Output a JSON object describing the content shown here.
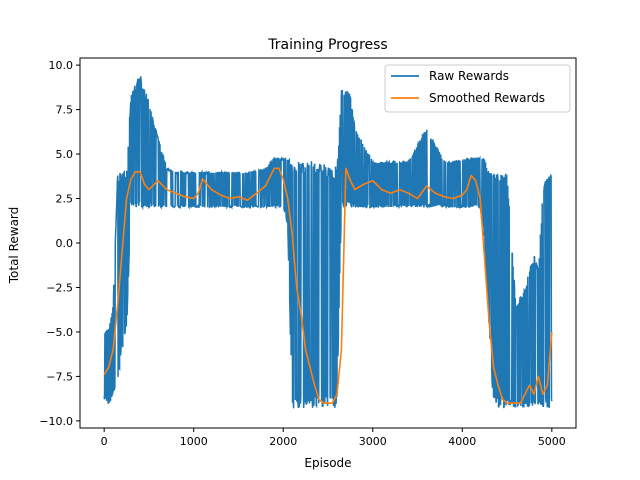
{
  "chart_data": {
    "type": "line",
    "title": "Training Progress",
    "xlabel": "Episode",
    "ylabel": "Total Reward",
    "xlim": [
      -270,
      5270
    ],
    "ylim": [
      -10.4,
      10.4
    ],
    "xticks": [
      0,
      1000,
      2000,
      3000,
      4000,
      5000
    ],
    "yticks": [
      -10.0,
      -7.5,
      -5.0,
      -2.5,
      0.0,
      2.5,
      5.0,
      7.5,
      10.0
    ],
    "xtick_labels": [
      "0",
      "1000",
      "2000",
      "3000",
      "4000",
      "5000"
    ],
    "ytick_labels": [
      "−10.0",
      "−7.5",
      "−5.0",
      "−2.5",
      "0.0",
      "2.5",
      "5.0",
      "7.5",
      "10.0"
    ],
    "grid": false,
    "legend_position": "upper-right",
    "series": [
      {
        "name": "Raw Rewards",
        "color": "#1f77b4",
        "envelope_x": [
          0,
          50,
          100,
          150,
          200,
          250,
          300,
          400,
          500,
          600,
          700,
          800,
          1000,
          1200,
          1400,
          1600,
          1800,
          1900,
          2000,
          2050,
          2100,
          2150,
          2200,
          2300,
          2400,
          2500,
          2600,
          2650,
          2700,
          2750,
          2800,
          3000,
          3200,
          3400,
          3600,
          3800,
          4000,
          4100,
          4200,
          4250,
          4300,
          4350,
          4400,
          4500,
          4600,
          4700,
          4800,
          4850,
          4900,
          4950,
          5000
        ],
        "envelope_upper": [
          -5.0,
          -4.8,
          -3.5,
          4.0,
          4.0,
          4.2,
          8.4,
          9.5,
          8.0,
          6.0,
          4.2,
          4.0,
          4.0,
          4.0,
          4.0,
          4.0,
          4.2,
          4.8,
          4.8,
          4.8,
          4.6,
          4.6,
          4.6,
          4.6,
          4.6,
          4.3,
          4.3,
          8.6,
          8.6,
          8.5,
          6.5,
          4.6,
          4.6,
          4.6,
          6.5,
          4.6,
          4.7,
          4.8,
          4.8,
          4.8,
          4.0,
          4.0,
          4.0,
          4.0,
          -3.5,
          -2.5,
          -0.5,
          -1.5,
          3.0,
          4.0,
          4.0
        ],
        "envelope_lower": [
          -8.8,
          -9.2,
          -8.5,
          -8.0,
          -6.0,
          -5.0,
          2.0,
          2.0,
          2.0,
          2.0,
          2.0,
          2.0,
          2.0,
          2.0,
          2.0,
          2.0,
          2.0,
          2.0,
          2.0,
          1.0,
          -9.3,
          -9.3,
          -9.3,
          -9.3,
          -9.3,
          -9.3,
          -9.3,
          2.0,
          2.0,
          2.0,
          2.0,
          2.0,
          2.0,
          2.0,
          2.0,
          2.0,
          2.0,
          2.0,
          2.0,
          0.0,
          -5.0,
          -9.3,
          -9.3,
          -9.3,
          -9.3,
          -9.3,
          -9.3,
          -9.3,
          -9.3,
          -9.3,
          -9.3
        ]
      },
      {
        "name": "Smoothed Rewards",
        "color": "#ff7f0e",
        "x": [
          0,
          50,
          100,
          150,
          200,
          250,
          300,
          350,
          400,
          450,
          500,
          600,
          700,
          800,
          900,
          1000,
          1050,
          1100,
          1200,
          1300,
          1400,
          1500,
          1600,
          1700,
          1800,
          1900,
          1950,
          2000,
          2050,
          2100,
          2150,
          2200,
          2250,
          2300,
          2350,
          2400,
          2450,
          2500,
          2550,
          2600,
          2650,
          2700,
          2750,
          2800,
          2900,
          3000,
          3100,
          3200,
          3300,
          3400,
          3500,
          3600,
          3700,
          3800,
          3900,
          4000,
          4050,
          4100,
          4150,
          4200,
          4250,
          4300,
          4350,
          4400,
          4450,
          4500,
          4550,
          4600,
          4650,
          4700,
          4750,
          4800,
          4850,
          4900,
          4950,
          5000
        ],
        "y": [
          -7.4,
          -7.0,
          -6.0,
          -3.5,
          -0.5,
          2.5,
          3.6,
          4.0,
          4.0,
          3.3,
          3.0,
          3.5,
          3.0,
          2.8,
          2.6,
          2.5,
          2.8,
          3.6,
          3.0,
          2.7,
          2.5,
          2.6,
          2.4,
          2.8,
          3.2,
          4.2,
          4.2,
          3.6,
          2.5,
          0.5,
          -2.5,
          -4.0,
          -6.0,
          -7.0,
          -8.0,
          -8.8,
          -9.0,
          -9.0,
          -9.0,
          -8.5,
          -6.0,
          4.2,
          3.5,
          3.0,
          3.3,
          3.5,
          3.0,
          2.8,
          3.0,
          2.8,
          2.5,
          3.2,
          2.8,
          2.6,
          2.5,
          2.7,
          3.0,
          3.8,
          3.5,
          2.5,
          -1.0,
          -4.5,
          -7.0,
          -8.0,
          -8.8,
          -9.0,
          -9.0,
          -9.0,
          -9.0,
          -8.5,
          -8.0,
          -8.5,
          -7.5,
          -8.5,
          -8.0,
          -5.0
        ]
      }
    ]
  }
}
